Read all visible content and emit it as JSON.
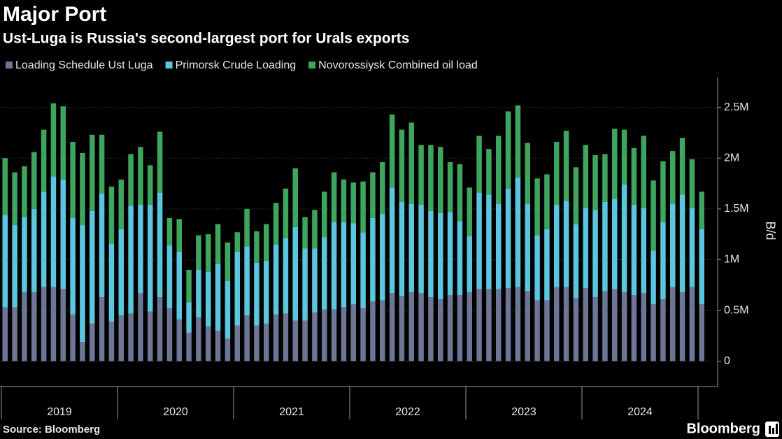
{
  "chart_data": {
    "type": "stacked_bar",
    "title": "Major Port",
    "subtitle": "Ust-Luga is Russia's second-largest port for Urals exports",
    "y_axis_label": "B/d",
    "source": "Source: Bloomberg",
    "brand": "Bloomberg",
    "categories": [
      null,
      null,
      null,
      null,
      null,
      null,
      null,
      null,
      null,
      null,
      null,
      null,
      null,
      null,
      null,
      null,
      null,
      null,
      null,
      null,
      null,
      null,
      null,
      null,
      null,
      null,
      null,
      null,
      null,
      null,
      null,
      null,
      null,
      null,
      null,
      null,
      null,
      null,
      null,
      null,
      null,
      null,
      null,
      null,
      null,
      null,
      null,
      null,
      null,
      null,
      null,
      null,
      null,
      null,
      null,
      null,
      null,
      null,
      null,
      null,
      null,
      null,
      null,
      null,
      null,
      null,
      null,
      null,
      null,
      null,
      null,
      null,
      null
    ],
    "year_groups": [
      "2019",
      "2020",
      "2021",
      "2022",
      "2023",
      "2024"
    ],
    "months_per_group": 12,
    "ylim": [
      -250000,
      2800000
    ],
    "yticks": [
      0,
      {
        "value": 500000,
        "label": "0.5M"
      },
      {
        "value": 1000000,
        "label": "1M"
      },
      {
        "value": 1500000,
        "label": "1.5M"
      },
      {
        "value": 2000000,
        "label": "2M"
      },
      {
        "value": 2500000,
        "label": "2.5M"
      }
    ],
    "grid": true,
    "legend": "top-left",
    "series": [
      {
        "name": "Loading Schedule Ust Luga",
        "color": "#6e7696",
        "values": [
          530000,
          530000,
          680000,
          680000,
          730000,
          730000,
          710000,
          460000,
          190000,
          370000,
          630000,
          390000,
          450000,
          470000,
          670000,
          490000,
          630000,
          520000,
          410000,
          280000,
          430000,
          340000,
          300000,
          220000,
          350000,
          450000,
          350000,
          370000,
          460000,
          470000,
          400000,
          400000,
          480000,
          510000,
          510000,
          530000,
          560000,
          520000,
          590000,
          600000,
          670000,
          640000,
          680000,
          670000,
          630000,
          610000,
          650000,
          650000,
          680000,
          710000,
          710000,
          710000,
          720000,
          730000,
          690000,
          600000,
          600000,
          730000,
          730000,
          620000,
          720000,
          630000,
          690000,
          710000,
          680000,
          650000,
          670000,
          560000,
          610000,
          730000,
          680000,
          730000,
          560000
        ]
      },
      {
        "name": "Primorsk Crude Loading",
        "color": "#5cc6de",
        "values": [
          910000,
          810000,
          740000,
          820000,
          940000,
          1090000,
          1080000,
          950000,
          1150000,
          1110000,
          1020000,
          770000,
          850000,
          1060000,
          870000,
          1050000,
          1030000,
          620000,
          670000,
          300000,
          470000,
          540000,
          660000,
          570000,
          730000,
          680000,
          620000,
          620000,
          690000,
          740000,
          920000,
          710000,
          630000,
          710000,
          860000,
          840000,
          800000,
          750000,
          820000,
          850000,
          1040000,
          930000,
          870000,
          870000,
          850000,
          850000,
          820000,
          730000,
          550000,
          950000,
          930000,
          840000,
          980000,
          1080000,
          860000,
          640000,
          700000,
          810000,
          850000,
          730000,
          790000,
          860000,
          880000,
          890000,
          1060000,
          890000,
          840000,
          530000,
          760000,
          820000,
          960000,
          780000,
          740000
        ]
      },
      {
        "name": "Novorossiysk Combined oil load",
        "color": "#3fa45e",
        "values": [
          560000,
          520000,
          500000,
          560000,
          610000,
          720000,
          720000,
          750000,
          710000,
          750000,
          580000,
          560000,
          490000,
          510000,
          570000,
          390000,
          600000,
          270000,
          320000,
          320000,
          340000,
          370000,
          390000,
          380000,
          190000,
          370000,
          310000,
          360000,
          410000,
          490000,
          580000,
          310000,
          380000,
          450000,
          490000,
          420000,
          400000,
          500000,
          450000,
          510000,
          720000,
          710000,
          800000,
          590000,
          650000,
          650000,
          490000,
          560000,
          480000,
          560000,
          450000,
          670000,
          760000,
          710000,
          600000,
          560000,
          540000,
          620000,
          690000,
          560000,
          620000,
          540000,
          470000,
          690000,
          540000,
          560000,
          710000,
          690000,
          600000,
          520000,
          560000,
          480000,
          370000
        ]
      }
    ]
  }
}
